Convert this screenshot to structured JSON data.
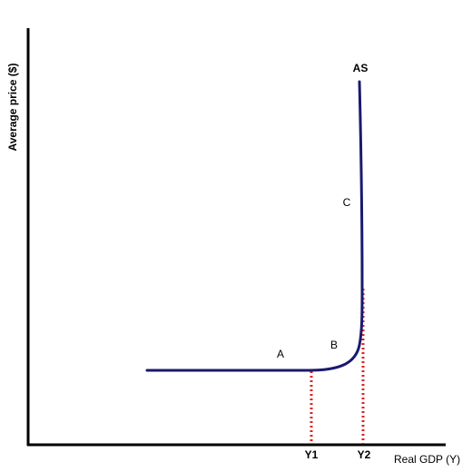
{
  "diagram": {
    "y_axis_label": "Average price ($)",
    "x_axis_label": "Real GDP (Y)",
    "curve_label": "AS",
    "points": {
      "a": "A",
      "b": "B",
      "c": "C"
    },
    "ticks": {
      "y1": "Y1",
      "y2": "Y2"
    }
  },
  "colors": {
    "curve": "#1a1a6e",
    "axes": "#000000",
    "guides": "#e02020"
  }
}
